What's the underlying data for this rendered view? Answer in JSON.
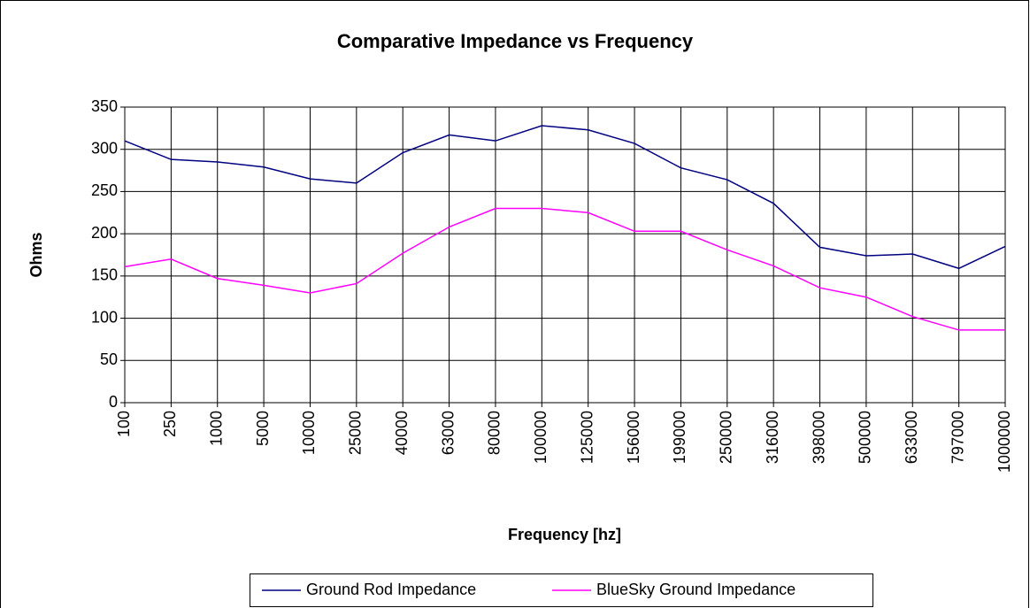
{
  "chart_data": {
    "type": "line",
    "title": "Comparative Impedance vs Frequency",
    "x_label": "Frequency [hz]",
    "y_label": "Ohms",
    "categories": [
      "100",
      "250",
      "1000",
      "5000",
      "10000",
      "25000",
      "40000",
      "63000",
      "80000",
      "100000",
      "125000",
      "156000",
      "199000",
      "250000",
      "316000",
      "398000",
      "500000",
      "633000",
      "797000",
      "1000000"
    ],
    "series": [
      {
        "name": "Ground Rod Impedance",
        "color": "#000080",
        "values": [
          310,
          288,
          285,
          279,
          265,
          260,
          296,
          317,
          310,
          328,
          323,
          307,
          278,
          264,
          236,
          184,
          174,
          176,
          159,
          185
        ]
      },
      {
        "name": "BlueSky Ground Impedance",
        "color": "#ff00ff",
        "values": [
          161,
          170,
          147,
          139,
          130,
          141,
          177,
          208,
          230,
          230,
          225,
          203,
          203,
          181,
          162,
          136,
          125,
          102,
          86,
          86
        ]
      }
    ],
    "ylim": [
      0,
      350
    ],
    "yticks": [
      0,
      50,
      100,
      150,
      200,
      250,
      300,
      350
    ],
    "grid": true,
    "legend": "bottom"
  }
}
